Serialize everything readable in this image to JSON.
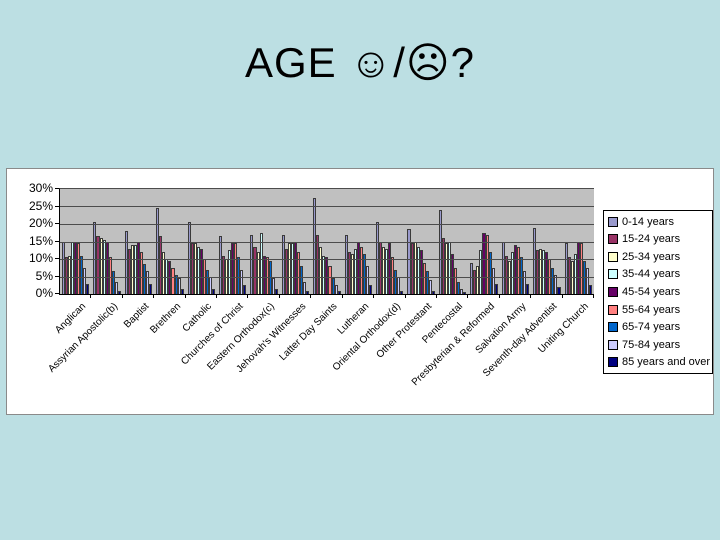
{
  "slide": {
    "title": "AGE ☺/☹?"
  },
  "chart_data": {
    "type": "bar",
    "title": "",
    "xlabel": "",
    "ylabel": "",
    "ylim": [
      0,
      30
    ],
    "grid": true,
    "legend_position": "right",
    "yticks": [
      {
        "label": "30%",
        "value": 30
      },
      {
        "label": "25%",
        "value": 25
      },
      {
        "label": "20%",
        "value": 20
      },
      {
        "label": "15%",
        "value": 15
      },
      {
        "label": "10%",
        "value": 10
      },
      {
        "label": "5%",
        "value": 5
      },
      {
        "label": "0%",
        "value": 0
      }
    ],
    "categories": [
      "Anglican",
      "Assyrian Apostolic(b)",
      "Baptist",
      "Brethren",
      "Catholic",
      "Churches of Christ",
      "Eastern Orthodox(c)",
      "Jehovah's Witnesses",
      "Latter Day Saints",
      "Lutheran",
      "Oriental Orthodox(d)",
      "Other Protestant",
      "Pentecostal",
      "Presbyterian & Reformed",
      "Salvation Army",
      "Seventh-day Adventist",
      "Uniting Church"
    ],
    "series": [
      {
        "name": "0-14 years",
        "color": "#9999CC",
        "values": [
          15,
          20.5,
          18,
          24.5,
          20.5,
          16.5,
          17,
          17,
          27.5,
          17,
          20.5,
          18.5,
          24,
          9,
          15,
          19,
          14.5
        ]
      },
      {
        "name": "15-24 years",
        "color": "#993366",
        "values": [
          10.5,
          16.5,
          13,
          16.5,
          14.5,
          11,
          13.5,
          13,
          17,
          12,
          15,
          14.5,
          16,
          7,
          11,
          12.5,
          10.5
        ]
      },
      {
        "name": "25-34 years",
        "color": "#FFFFCC",
        "values": [
          11,
          16,
          14,
          12,
          14.5,
          10,
          12,
          14.5,
          13.5,
          11.5,
          13.5,
          15,
          14.5,
          8,
          9.5,
          13,
          9.5
        ]
      },
      {
        "name": "35-44 years",
        "color": "#CCFFFF",
        "values": [
          15,
          15.5,
          14,
          10,
          13.5,
          12.5,
          17.5,
          14.5,
          11,
          13,
          13,
          13.5,
          15,
          12.5,
          12,
          12.5,
          11.5
        ]
      },
      {
        "name": "45-54 years",
        "color": "#660066",
        "values": [
          15,
          15,
          15,
          9.5,
          13,
          14.5,
          11,
          15,
          10.5,
          15,
          14.5,
          12.5,
          11.5,
          17.5,
          14,
          12,
          15
        ]
      },
      {
        "name": "55-64 years",
        "color": "#FF8080",
        "values": [
          14.5,
          10.5,
          12,
          7.5,
          10,
          14.5,
          10.5,
          12,
          8,
          13.5,
          10.5,
          9,
          7.5,
          17,
          13.5,
          10,
          14.5
        ]
      },
      {
        "name": "65-74 years",
        "color": "#0066CC",
        "values": [
          11,
          6.5,
          8.5,
          5.5,
          7,
          10.5,
          9.5,
          8,
          4.5,
          11.5,
          7,
          6.5,
          3.5,
          12,
          10.5,
          7.5,
          9.5
        ]
      },
      {
        "name": "75-84 years",
        "color": "#CCCCFF",
        "values": [
          7.5,
          3.5,
          6.5,
          4.5,
          5,
          7,
          4.5,
          3.5,
          2.5,
          8,
          5,
          4,
          1.5,
          7.5,
          6.5,
          5.5,
          7.5
        ]
      },
      {
        "name": "85 years and over",
        "color": "#000080",
        "values": [
          3,
          1,
          3,
          1.5,
          1.5,
          2.5,
          1.5,
          1,
          1,
          2.5,
          1,
          1,
          0.5,
          3,
          3,
          2,
          2.5
        ]
      }
    ]
  }
}
